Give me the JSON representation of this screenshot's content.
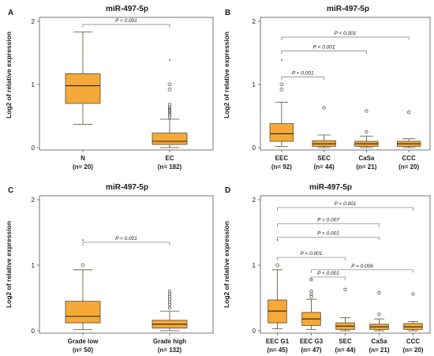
{
  "colors": {
    "box": "#F5A938",
    "box_stroke": "#5a4a30",
    "axis": "#555555",
    "bracket": "#777777"
  },
  "chart_data": [
    {
      "panel_label": "A",
      "type": "box",
      "title": "miR-497-5p",
      "ylabel": "Log2 of relative expression",
      "ylim": [
        0,
        2
      ],
      "yticks": [
        "0",
        "1",
        "2"
      ],
      "categories": [
        {
          "name": "N",
          "n": "(n= 20)"
        },
        {
          "name": "EC",
          "n": "(n= 182)"
        }
      ],
      "boxes": [
        {
          "whislo": 0.37,
          "q1": 0.7,
          "med": 0.98,
          "q3": 1.17,
          "whishi": 1.83,
          "fliers": []
        },
        {
          "whislo": 0.0,
          "q1": 0.05,
          "med": 0.1,
          "q3": 0.23,
          "whishi": 0.45,
          "fliers": [
            0.48,
            0.52,
            0.55,
            0.58,
            0.61,
            0.64,
            0.68,
            0.92,
            1.0,
            1.38
          ]
        }
      ],
      "annotations": [
        {
          "text": "P < 0.001",
          "from": 0,
          "to": 1,
          "y": 1.95
        }
      ]
    },
    {
      "panel_label": "B",
      "type": "box",
      "title": "miR-497-5p",
      "ylabel": "Log2 of relative expression",
      "ylim": [
        0,
        2
      ],
      "yticks": [
        "0",
        "1",
        "2"
      ],
      "categories": [
        {
          "name": "EEC",
          "n": "(n= 92)"
        },
        {
          "name": "SEC",
          "n": "(n= 44)"
        },
        {
          "name": "CaSa",
          "n": "(n= 21)"
        },
        {
          "name": "CCC",
          "n": "(n= 20)"
        }
      ],
      "boxes": [
        {
          "whislo": 0.02,
          "q1": 0.1,
          "med": 0.22,
          "q3": 0.38,
          "whishi": 0.72,
          "fliers": [
            0.92,
            1.0,
            1.38
          ]
        },
        {
          "whislo": 0.0,
          "q1": 0.02,
          "med": 0.06,
          "q3": 0.11,
          "whishi": 0.2,
          "fliers": [
            0.63
          ]
        },
        {
          "whislo": 0.0,
          "q1": 0.02,
          "med": 0.06,
          "q3": 0.1,
          "whishi": 0.18,
          "fliers": [
            0.25,
            0.58
          ]
        },
        {
          "whislo": 0.0,
          "q1": 0.02,
          "med": 0.06,
          "q3": 0.1,
          "whishi": 0.14,
          "fliers": [
            0.56
          ]
        }
      ],
      "annotations": [
        {
          "text": "P < 0.001",
          "from": 0,
          "to": 3,
          "y": 1.75
        },
        {
          "text": "P < 0.001",
          "from": 0,
          "to": 2,
          "y": 1.53
        },
        {
          "text": "P < 0.001",
          "from": 0,
          "to": 1,
          "y": 1.12
        }
      ]
    },
    {
      "panel_label": "C",
      "type": "box",
      "title": "miR-497-5p",
      "ylabel": "Log2 of relative expression",
      "ylim": [
        0,
        2
      ],
      "yticks": [
        "0",
        "1",
        "2"
      ],
      "categories": [
        {
          "name": "Grade low",
          "n": "(n= 50)"
        },
        {
          "name": "Grade high",
          "n": "(n= 132)"
        }
      ],
      "boxes": [
        {
          "whislo": 0.02,
          "q1": 0.12,
          "med": 0.22,
          "q3": 0.45,
          "whishi": 0.93,
          "fliers": [
            1.0,
            1.38
          ]
        },
        {
          "whislo": 0.0,
          "q1": 0.04,
          "med": 0.1,
          "q3": 0.16,
          "whishi": 0.3,
          "fliers": [
            0.35,
            0.4,
            0.44,
            0.48,
            0.52,
            0.56,
            0.6
          ]
        }
      ],
      "annotations": [
        {
          "text": "P < 0.001",
          "from": 0,
          "to": 1,
          "y": 1.35
        }
      ]
    },
    {
      "panel_label": "D",
      "type": "box",
      "title": "miR-497-5p",
      "ylabel": "Log2 of relative expression",
      "ylim": [
        0,
        2
      ],
      "yticks": [
        "0",
        "1",
        "2"
      ],
      "categories": [
        {
          "name": "EEC G1",
          "n": "(n= 45)"
        },
        {
          "name": "EEC G3",
          "n": "(n= 47)"
        },
        {
          "name": "SEC",
          "n": "(n= 44)"
        },
        {
          "name": "CaSa",
          "n": "(n= 21)"
        },
        {
          "name": "CCC",
          "n": "(n= 20)"
        }
      ],
      "boxes": [
        {
          "whislo": 0.03,
          "q1": 0.12,
          "med": 0.3,
          "q3": 0.47,
          "whishi": 0.93,
          "fliers": [
            1.0,
            1.38
          ]
        },
        {
          "whislo": 0.02,
          "q1": 0.08,
          "med": 0.18,
          "q3": 0.28,
          "whishi": 0.48,
          "fliers": [
            0.52,
            0.56,
            0.6,
            0.78
          ]
        },
        {
          "whislo": 0.0,
          "q1": 0.02,
          "med": 0.07,
          "q3": 0.12,
          "whishi": 0.2,
          "fliers": [
            0.63
          ]
        },
        {
          "whislo": 0.0,
          "q1": 0.02,
          "med": 0.06,
          "q3": 0.1,
          "whishi": 0.18,
          "fliers": [
            0.25,
            0.58
          ]
        },
        {
          "whislo": 0.0,
          "q1": 0.02,
          "med": 0.06,
          "q3": 0.11,
          "whishi": 0.14,
          "fliers": [
            0.56
          ]
        }
      ],
      "annotations": [
        {
          "text": "P < 0.001",
          "from": 0,
          "to": 4,
          "y": 1.88
        },
        {
          "text": "P = 0.007",
          "from": 0,
          "to": 3,
          "y": 1.63
        },
        {
          "text": "P < 0.001",
          "from": 0,
          "to": 3,
          "y": 1.43
        },
        {
          "text": "P = 0.006",
          "from": 1,
          "to": 4,
          "y": 0.93
        },
        {
          "text": "P < 0.001",
          "from": 0,
          "to": 2,
          "y": 1.12
        },
        {
          "text": "P < 0.001",
          "from": 1,
          "to": 2,
          "y": 0.82
        }
      ]
    }
  ]
}
